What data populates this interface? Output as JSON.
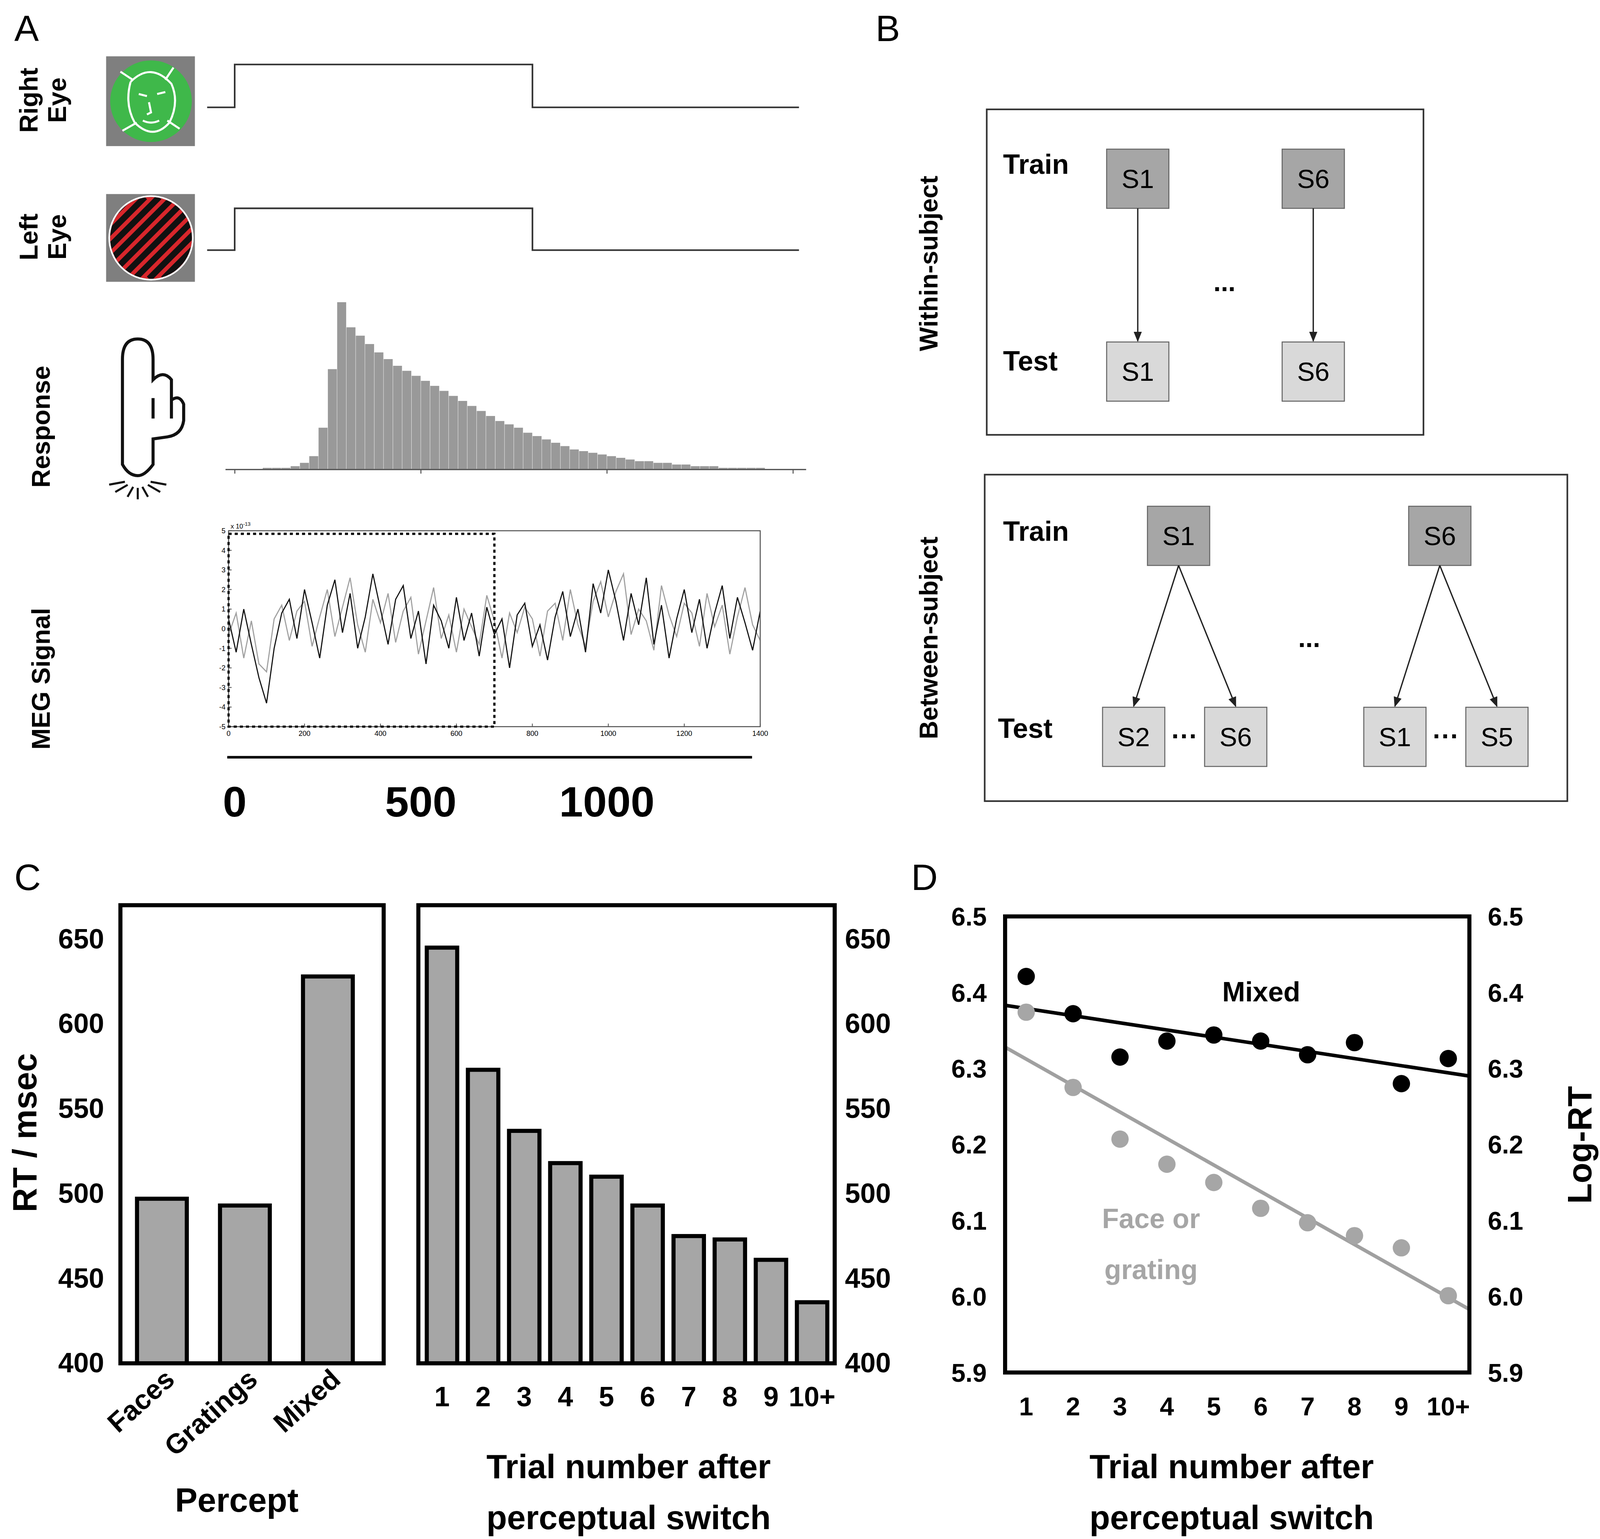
{
  "panel_labels": [
    "A",
    "B",
    "C",
    "D"
  ],
  "panel_a": {
    "eye_labels": [
      [
        "Right",
        "Eye"
      ],
      [
        "Left",
        "Eye"
      ]
    ],
    "response_label": "Response",
    "meg_label": "MEG Signal",
    "stimulus": {
      "onset": 0,
      "offset": 800
    },
    "time_axis": {
      "xlim": [
        -20,
        1390
      ],
      "xticks": [
        0,
        500,
        1000
      ]
    }
  },
  "panel_b": {
    "sections": [
      {
        "label": "Within-subject",
        "train_label": "Train",
        "test_label": "Test",
        "pairs": [
          {
            "train": "S1",
            "test": [
              "S1"
            ]
          },
          {
            "train": "S6",
            "test": [
              "S6"
            ]
          }
        ],
        "between_pairs": "..."
      },
      {
        "label": "Between-subject",
        "train_label": "Train",
        "test_label": "Test",
        "pairs": [
          {
            "train": "S1",
            "test": [
              "S2",
              "S6"
            ],
            "test_gap": "···"
          },
          {
            "train": "S6",
            "test": [
              "S1",
              "S5"
            ],
            "test_gap": "···"
          }
        ],
        "between_pairs": "..."
      }
    ]
  },
  "chart_data": [
    {
      "type": "histogram",
      "bins": [
        0,
        25,
        50,
        75,
        100,
        125,
        150,
        175,
        200,
        225,
        250,
        275,
        300,
        325,
        350,
        375,
        400,
        425,
        450,
        475,
        500,
        525,
        550,
        575,
        600,
        625,
        650,
        675,
        700,
        725,
        750,
        775,
        800,
        825,
        850,
        875,
        900,
        925,
        950,
        975,
        1000,
        1025,
        1050,
        1075,
        1100,
        1125,
        1150,
        1175,
        1200,
        1225,
        1250,
        1275,
        1300,
        1325,
        1350,
        1375,
        1400,
        1425,
        1450,
        1475,
        1500
      ],
      "values": [
        0,
        0,
        0,
        1,
        1,
        1,
        2,
        4,
        8,
        25,
        60,
        100,
        85,
        80,
        75,
        70,
        66,
        62,
        59,
        56,
        53,
        50,
        47,
        44,
        41,
        38,
        35,
        32,
        29,
        27,
        25,
        22,
        20,
        18,
        16,
        14,
        12,
        11,
        10,
        9,
        8,
        7,
        6,
        5,
        5,
        4,
        4,
        3,
        3,
        2,
        2,
        2,
        1,
        1,
        1,
        1,
        1,
        0,
        0,
        0
      ],
      "color": "#999999",
      "xlim": [
        -25,
        1535
      ],
      "ylim": [
        0,
        100
      ],
      "xticks": [
        0,
        500,
        1000,
        1500
      ],
      "tick_labels": false
    },
    {
      "type": "line",
      "x": [
        0,
        20,
        40,
        60,
        80,
        100,
        120,
        140,
        160,
        180,
        200,
        220,
        240,
        260,
        280,
        300,
        320,
        340,
        360,
        380,
        400,
        420,
        440,
        460,
        480,
        500,
        520,
        540,
        560,
        580,
        600,
        620,
        640,
        660,
        680,
        700,
        720,
        740,
        760,
        780,
        800,
        820,
        840,
        860,
        880,
        900,
        920,
        940,
        960,
        980,
        1000,
        1020,
        1040,
        1060,
        1080,
        1100,
        1120,
        1140,
        1160,
        1180,
        1200,
        1220,
        1240,
        1260,
        1280,
        1300,
        1320,
        1340,
        1360,
        1380,
        1400
      ],
      "series": [
        {
          "color": "#111111",
          "values": [
            0.5,
            -1.2,
            1.0,
            -0.8,
            -2.5,
            -3.8,
            -1.0,
            0.8,
            1.5,
            -0.5,
            2.0,
            0.3,
            -1.5,
            1.2,
            2.5,
            -0.2,
            1.8,
            -1.0,
            0.6,
            2.8,
            1.0,
            -0.8,
            1.5,
            2.2,
            -0.5,
            0.9,
            -1.8,
            1.2,
            0.4,
            -1.0,
            1.6,
            -0.6,
            0.8,
            -1.4,
            1.1,
            -0.3,
            0.5,
            -2.0,
            0.7,
            1.3,
            -0.9,
            0.2,
            -1.6,
            0.6,
            1.9,
            -0.4,
            1.0,
            -1.2,
            2.3,
            0.8,
            3.0,
            1.4,
            -0.6,
            1.8,
            0.2,
            2.6,
            -0.8,
            1.2,
            -1.5,
            0.5,
            2.0,
            -0.2,
            1.5,
            -1.0,
            0.8,
            2.2,
            -0.5,
            1.6,
            0.3,
            -1.1,
            0.9
          ]
        },
        {
          "color": "#a0a0a0",
          "values": [
            -0.3,
            0.8,
            -1.5,
            0.4,
            -1.8,
            -2.2,
            0.5,
            1.2,
            -0.6,
            0.9,
            1.4,
            -0.9,
            0.6,
            2.0,
            -0.4,
            1.1,
            2.6,
            0.2,
            -1.2,
            1.5,
            0.3,
            1.8,
            -0.7,
            0.9,
            1.6,
            -1.3,
            0.4,
            2.1,
            -0.5,
            0.7,
            -1.2,
            1.0,
            0.1,
            -0.8,
            1.7,
            0.4,
            -1.5,
            0.8,
            -0.2,
            1.1,
            0.5,
            -1.4,
            0.9,
            1.3,
            -0.6,
            2.0,
            0.2,
            -0.9,
            1.4,
            2.4,
            0.6,
            1.9,
            2.8,
            -0.3,
            1.0,
            0.4,
            -1.1,
            2.2,
            0.7,
            -0.4,
            1.3,
            0.8,
            -0.9,
            1.8,
            0.1,
            1.2,
            -1.3,
            0.6,
            2.1,
            0.2,
            -0.6
          ]
        }
      ],
      "xlim": [
        0,
        1400
      ],
      "ylim": [
        -5,
        5
      ],
      "xticks": [
        0,
        200,
        400,
        600,
        800,
        1000,
        1200,
        1400
      ],
      "yticks": [
        -5,
        -4,
        -3,
        -2,
        -1,
        0,
        1,
        2,
        3,
        4,
        5
      ],
      "axis_multiplier": {
        "base": "x 10",
        "exponent": "-13"
      },
      "window": [
        0,
        700
      ]
    },
    {
      "type": "bar",
      "categories": [
        "Faces",
        "Gratings",
        "Mixed"
      ],
      "values": [
        497,
        493,
        628
      ],
      "color": "#a6a6a6",
      "ylim": [
        400,
        670
      ],
      "yticks": [
        400,
        450,
        500,
        550,
        600,
        650
      ],
      "xlabel": "Percept",
      "ylabel": "RT / msec"
    },
    {
      "type": "bar",
      "categories": [
        "1",
        "2",
        "3",
        "4",
        "5",
        "6",
        "7",
        "8",
        "9",
        "10+"
      ],
      "series": [
        {
          "values": [
            645,
            573,
            537,
            518,
            510,
            493,
            475,
            473,
            461,
            436
          ],
          "color": "#a6a6a6",
          "axis": "y2"
        }
      ],
      "y2lim": [
        400,
        670
      ],
      "y2ticks": [
        400,
        450,
        500,
        550,
        600,
        650
      ],
      "xlabel": [
        "Trial number after",
        "perceptual switch"
      ]
    },
    {
      "type": "scatter",
      "x": [
        1,
        2,
        3,
        4,
        5,
        6,
        7,
        8,
        9,
        10
      ],
      "series": [
        {
          "type": "scatter",
          "marker": "circle",
          "color": "#000000",
          "values": [
            6.421,
            6.372,
            6.315,
            6.336,
            6.344,
            6.336,
            6.318,
            6.334,
            6.28,
            6.313
          ]
        },
        {
          "type": "scatter",
          "marker": "circle",
          "color": "#a6a6a6",
          "values": [
            6.374,
            6.275,
            6.207,
            6.174,
            6.15,
            6.116,
            6.097,
            6.08,
            6.064,
            6.001
          ]
        },
        {
          "type": "line",
          "line_style": "solid",
          "color": "#000000",
          "x": [
            0.55,
            10.45
          ],
          "values": [
            6.383,
            6.29
          ]
        },
        {
          "type": "line",
          "line_style": "solid",
          "color": "#a0a0a0",
          "x": [
            0.55,
            10.45
          ],
          "values": [
            6.328,
            5.983
          ]
        }
      ],
      "xlim": [
        0.55,
        10.45
      ],
      "xticks": [
        1,
        2,
        3,
        4,
        5,
        6,
        7,
        8,
        9,
        {
          "value": 10,
          "label": "10+"
        }
      ],
      "ylim": [
        5.9,
        6.5
      ],
      "yticks": [
        5.9,
        {
          "value": 6,
          "label": "6.0"
        },
        6.1,
        6.2,
        6.3,
        6.4,
        6.5
      ],
      "y2lim": [
        5.9,
        6.5
      ],
      "y2ticks": [
        5.9,
        {
          "value": 6,
          "label": "6.0"
        },
        6.1,
        6.2,
        6.3,
        6.4,
        6.5
      ],
      "xlabel": [
        "Trial number after",
        "perceptual switch"
      ],
      "y2label": "Log-RT",
      "annotations": [
        {
          "text": [
            "Mixed"
          ],
          "color": "#000000"
        },
        {
          "text": [
            "Face or",
            "grating"
          ],
          "color": "#a6a6a6"
        }
      ]
    }
  ]
}
